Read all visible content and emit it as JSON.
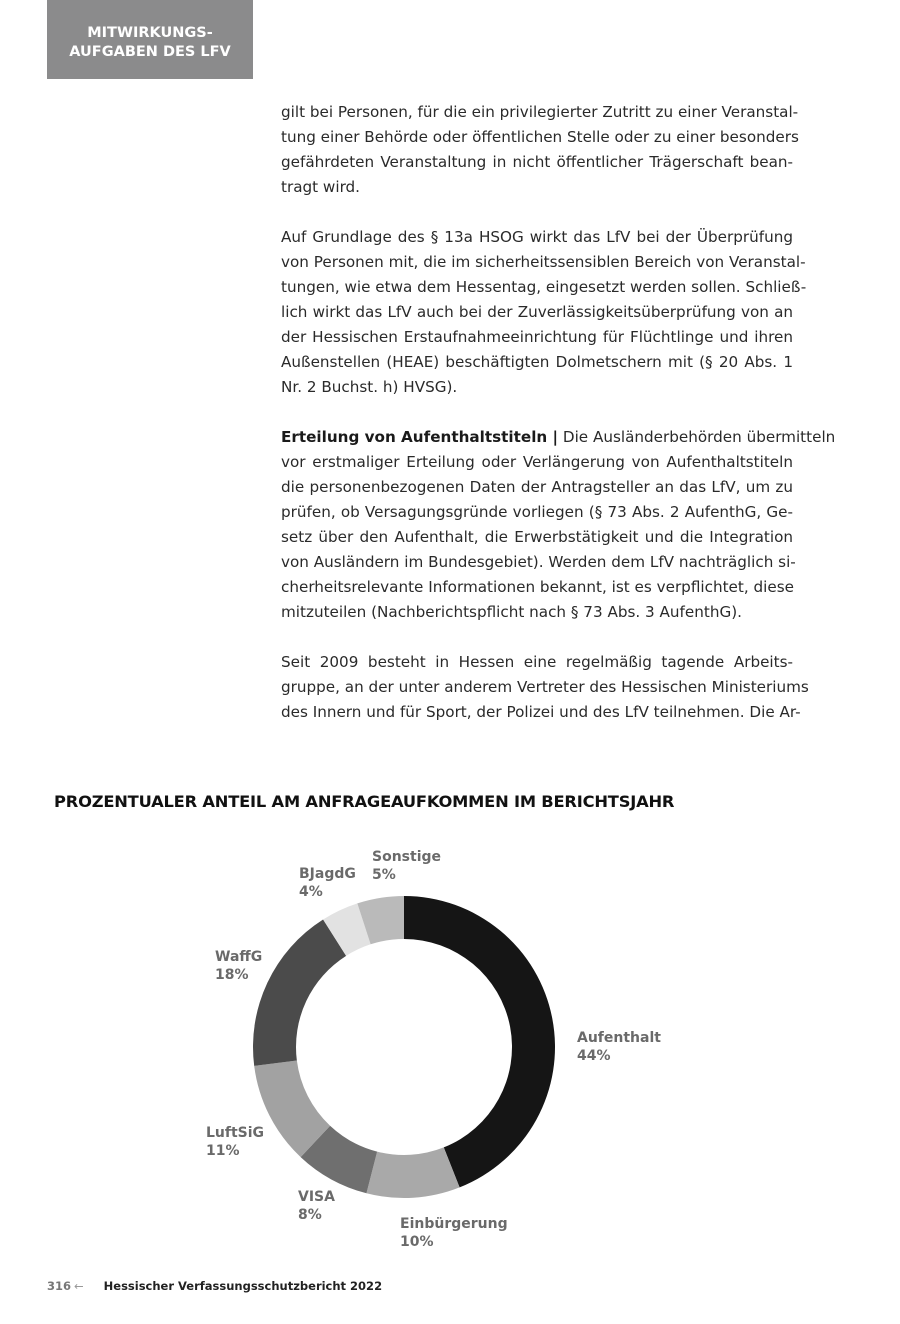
{
  "header": {
    "line1": "MITWIRKUNGS-",
    "line2": "AUFGABEN DES LFV"
  },
  "paragraphs": [
    {
      "lines": [
        "gilt bei Personen, für die ein privilegierter Zutritt zu einer Veranstal-",
        "tung einer Behörde oder öffentlichen Stelle oder zu einer besonders",
        "gefährdeten Veranstaltung in nicht öffentlicher Trägerschaft bean-",
        "tragt wird."
      ]
    },
    {
      "lines": [
        "Auf Grundlage des § 13a HSOG wirkt das LfV bei der Überprüfung",
        "von Personen mit, die im sicherheitssensiblen Bereich von Veranstal-",
        "tungen, wie etwa dem Hessentag, eingesetzt werden sollen. Schließ-",
        "lich wirkt das LfV auch bei der Zuverlässigkeitsüberprüfung von an",
        "der Hessischen Erstaufnahmeeinrichtung für Flüchtlinge und ihren",
        "Außenstellen (HEAE) beschäftigten Dolmetschern mit (§ 20 Abs. 1",
        "Nr. 2 Buchst. h) HVSG)."
      ]
    },
    {
      "lead": "Erteilung von Aufenthaltstiteln |",
      "lines": [
        " Die Ausländerbehörden übermitteln",
        "vor erstmaliger Erteilung oder Verlängerung von Aufenthaltstiteln",
        "die personenbezogenen Daten der Antragsteller an das LfV, um zu",
        "prüfen, ob Versagungsgründe vorliegen (§ 73 Abs. 2 AufenthG, Ge-",
        "setz über den Aufenthalt, die Erwerbstätigkeit und die Integration",
        "von Ausländern im Bundesgebiet). Werden dem LfV nachträglich si-",
        "cherheitsrelevante Informationen bekannt, ist es verpflichtet, diese",
        "mitzuteilen (Nachberichtspflicht nach § 73 Abs. 3 AufenthG)."
      ]
    },
    {
      "lines": [
        "Seit 2009 besteht in Hessen eine regelmäßig tagende Arbeits-",
        "gruppe, an der unter anderem Vertreter des Hessischen Ministeriums",
        "des Innern und für Sport, der Polizei und des LfV teilnehmen. Die Ar-"
      ]
    }
  ],
  "chart_data": {
    "type": "pie",
    "variant": "donut",
    "title": "PROZENTUALER ANTEIL AM ANFRAGEAUFKOMMEN IM BERICHTSJAHR",
    "unit": "%",
    "slices": [
      {
        "label": "Aufenthalt",
        "value": 44,
        "display": "44%",
        "color": "#151515"
      },
      {
        "label": "Einbürgerung",
        "value": 10,
        "display": "10%",
        "color": "#a9a9a9"
      },
      {
        "label": "VISA",
        "value": 8,
        "display": "8%",
        "color": "#6f6f6f"
      },
      {
        "label": "LuftSiG",
        "value": 11,
        "display": "11%",
        "color": "#a2a2a2"
      },
      {
        "label": "WaffG",
        "value": 18,
        "display": "18%",
        "color": "#4b4b4b"
      },
      {
        "label": "BJagdG",
        "value": 4,
        "display": "4%",
        "color": "#e2e2e2"
      },
      {
        "label": "Sonstige",
        "value": 5,
        "display": "5%",
        "color": "#bababa"
      }
    ]
  },
  "footer": {
    "page_number": "316",
    "arrow_icon": "arrow-left-icon",
    "title": "Hessischer Verfassungsschutzbericht 2022"
  }
}
